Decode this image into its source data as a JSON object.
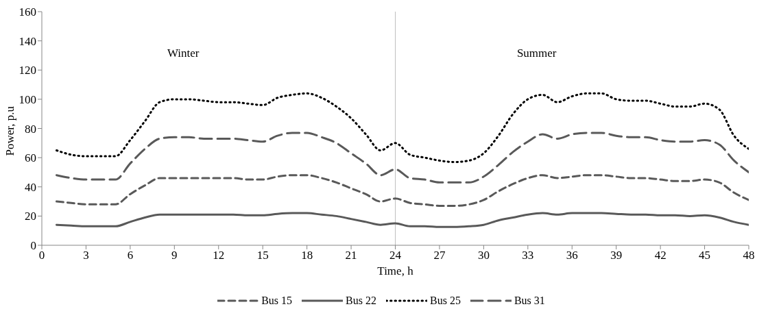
{
  "chart_data": {
    "type": "line",
    "xlabel": "Time, h",
    "ylabel": "Power, p.u",
    "x": [
      1,
      2,
      3,
      4,
      5,
      6,
      7,
      8,
      9,
      10,
      11,
      12,
      13,
      14,
      15,
      16,
      17,
      18,
      19,
      20,
      21,
      22,
      23,
      24,
      25,
      26,
      27,
      28,
      29,
      30,
      31,
      32,
      33,
      34,
      35,
      36,
      37,
      38,
      39,
      40,
      41,
      42,
      43,
      44,
      45,
      46,
      47,
      48
    ],
    "series": [
      {
        "name": "Bus 15",
        "color": "#595959",
        "line_style": "dashed",
        "values": [
          30,
          29,
          28,
          28,
          28,
          35,
          41,
          46,
          46,
          46,
          46,
          46,
          46,
          45,
          45,
          47,
          48,
          48,
          46,
          43,
          39,
          35,
          30,
          32,
          29,
          28,
          27,
          27,
          28,
          31,
          37,
          42,
          46,
          48,
          46,
          47,
          48,
          48,
          47,
          46,
          46,
          45,
          44,
          44,
          45,
          43,
          36,
          31
        ]
      },
      {
        "name": "Bus 22",
        "color": "#595959",
        "line_style": "solid",
        "values": [
          14,
          13.5,
          13,
          13,
          13,
          16,
          19,
          21,
          21,
          21,
          21,
          21,
          21,
          20.5,
          20.5,
          21.5,
          22,
          22,
          21,
          20,
          18,
          16,
          14,
          15,
          13,
          13,
          12.5,
          12.5,
          13,
          14,
          17,
          19,
          21,
          22,
          21,
          22,
          22,
          22,
          21.5,
          21,
          21,
          20.5,
          20.5,
          20,
          20.5,
          19,
          16,
          14
        ]
      },
      {
        "name": "Bus 25",
        "color": "#000000",
        "line_style": "dotted",
        "values": [
          65,
          62,
          61,
          61,
          61,
          72,
          85,
          98,
          100,
          100,
          99,
          98,
          98,
          97,
          96,
          101,
          103,
          104,
          101,
          95,
          87,
          76,
          65,
          70,
          62,
          60,
          58,
          57,
          58,
          63,
          75,
          90,
          100,
          103,
          98,
          102,
          104,
          104,
          100,
          99,
          99,
          97,
          95,
          95,
          97,
          93,
          75,
          66
        ]
      },
      {
        "name": "Bus 31",
        "color": "#595959",
        "line_style": "dashed",
        "values": [
          48,
          46,
          45,
          45,
          45,
          56,
          66,
          73,
          74,
          74,
          73,
          73,
          73,
          72,
          71,
          75,
          77,
          77,
          74,
          70,
          63,
          56,
          48,
          52,
          46,
          45,
          43,
          43,
          43,
          47,
          55,
          64,
          71,
          76,
          73,
          76,
          77,
          77,
          75,
          74,
          74,
          72,
          71,
          71,
          72,
          69,
          58,
          50
        ]
      }
    ],
    "xlim": [
      0,
      48
    ],
    "xticks": [
      0,
      3,
      6,
      9,
      12,
      15,
      18,
      21,
      24,
      27,
      30,
      33,
      36,
      39,
      42,
      45,
      48
    ],
    "ylim": [
      0,
      160
    ],
    "yticks": [
      0,
      20,
      40,
      60,
      80,
      100,
      120,
      140,
      160
    ],
    "ref_lines": [
      {
        "axis": "x",
        "value": 24,
        "color": "#bfbfbf"
      }
    ],
    "annotations": [
      "Winter",
      "Summer"
    ],
    "grid": false,
    "legend": "bottom",
    "marker": "none"
  }
}
